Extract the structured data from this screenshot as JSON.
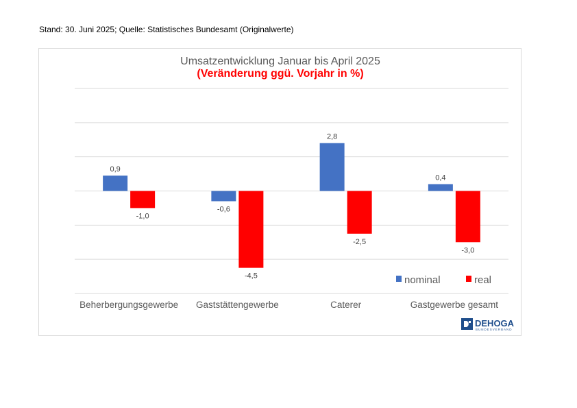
{
  "header": {
    "note": "Stand: 30. Juni 2025; Quelle: Statistisches Bundesamt (Originalwerte)"
  },
  "logo": {
    "name": "DEHOGA",
    "sub": "BUNDESVERBAND",
    "icon": "dehoga-logo-icon"
  },
  "colors": {
    "nominal": "#4472c4",
    "real": "#ff0000",
    "grid": "#d9d9d9"
  },
  "chart_data": {
    "type": "bar",
    "title": "Umsatzentwicklung Januar bis April 2025",
    "subtitle": "(Veränderung ggü. Vorjahr in %)",
    "categories": [
      "Beherbergungsgewerbe",
      "Gaststättengewerbe",
      "Caterer",
      "Gastgewerbe gesamt"
    ],
    "series": [
      {
        "name": "nominal",
        "values": [
          0.9,
          -0.6,
          2.8,
          0.4
        ],
        "labels": [
          "0,9",
          "-0,6",
          "2,8",
          "0,4"
        ]
      },
      {
        "name": "real",
        "values": [
          -1.0,
          -4.5,
          -2.5,
          -3.0
        ],
        "labels": [
          "-1,0",
          "-4,5",
          "-2,5",
          "-3,0"
        ]
      }
    ],
    "ylim": [
      -6,
      6
    ],
    "grid": true,
    "legend": "bottom-right",
    "axis_labels_shown": false
  }
}
